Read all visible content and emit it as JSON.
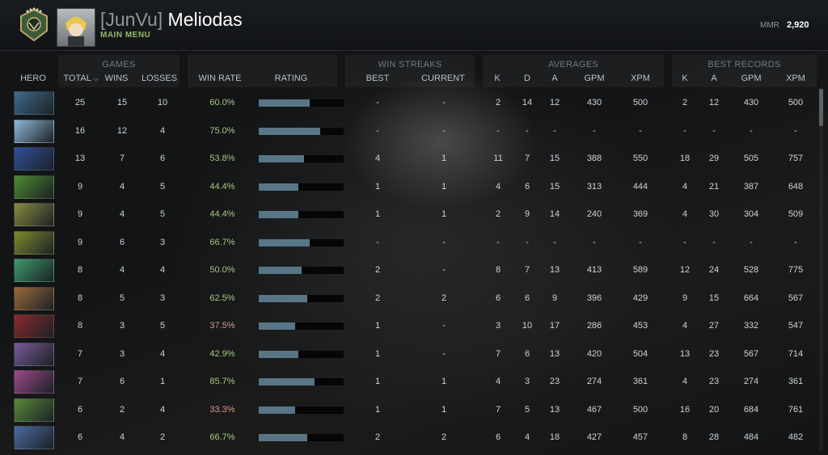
{
  "header": {
    "player_tag": "[JunVu]",
    "player_name": "Meliodas",
    "main_menu": "MAIN MENU",
    "mmr_label": "MMR",
    "mmr_value": "2,920"
  },
  "groups": {
    "games": "GAMES",
    "win_streaks": "WIN STREAKS",
    "averages": "AVERAGES",
    "best_records": "BEST RECORDS"
  },
  "columns": {
    "hero": "HERO",
    "total": "TOTAL",
    "wins": "WINS",
    "losses": "LOSSES",
    "win_rate": "WIN RATE",
    "rating": "RATING",
    "streak_best": "BEST",
    "streak_current": "CURRENT",
    "avg_k": "K",
    "avg_d": "D",
    "avg_a": "A",
    "avg_gpm": "GPM",
    "avg_xpm": "XPM",
    "best_k": "K",
    "best_a": "A",
    "best_gpm": "GPM",
    "best_xpm": "XPM"
  },
  "colors": {
    "win_rate_good": "#a5c97f",
    "win_rate_bad": "#d79a94",
    "rating_bar": "#587686",
    "accent_green": "#98b96a"
  },
  "rows": [
    {
      "hero_icon": "hero-portrait-1",
      "hero_color": "#3f6a8c",
      "total": "25",
      "wins": "15",
      "losses": "10",
      "win_rate": "60.0%",
      "rating": 0.6,
      "streak_best": "-",
      "streak_current": "-",
      "k": "2",
      "d": "14",
      "a": "12",
      "gpm": "430",
      "xpm": "500",
      "best_k": "2",
      "best_a": "12",
      "best_gpm": "430",
      "best_xpm": "500"
    },
    {
      "hero_icon": "hero-portrait-2",
      "hero_color": "#8fb8d8",
      "total": "16",
      "wins": "12",
      "losses": "4",
      "win_rate": "75.0%",
      "rating": 0.72,
      "streak_best": "-",
      "streak_current": "-",
      "k": "-",
      "d": "-",
      "a": "-",
      "gpm": "-",
      "xpm": "-",
      "best_k": "-",
      "best_a": "-",
      "best_gpm": "-",
      "best_xpm": "-"
    },
    {
      "hero_icon": "hero-portrait-3",
      "hero_color": "#2f4f9a",
      "total": "13",
      "wins": "7",
      "losses": "6",
      "win_rate": "53.8%",
      "rating": 0.53,
      "streak_best": "4",
      "streak_current": "1",
      "k": "11",
      "d": "7",
      "a": "15",
      "gpm": "388",
      "xpm": "550",
      "best_k": "18",
      "best_a": "29",
      "best_gpm": "505",
      "best_xpm": "757"
    },
    {
      "hero_icon": "hero-portrait-4",
      "hero_color": "#4d8a2e",
      "total": "9",
      "wins": "4",
      "losses": "5",
      "win_rate": "44.4%",
      "rating": 0.47,
      "streak_best": "1",
      "streak_current": "1",
      "k": "4",
      "d": "6",
      "a": "15",
      "gpm": "313",
      "xpm": "444",
      "best_k": "4",
      "best_a": "21",
      "best_gpm": "387",
      "best_xpm": "648"
    },
    {
      "hero_icon": "hero-portrait-5",
      "hero_color": "#8a8a3e",
      "total": "9",
      "wins": "4",
      "losses": "5",
      "win_rate": "44.4%",
      "rating": 0.47,
      "streak_best": "1",
      "streak_current": "1",
      "k": "2",
      "d": "9",
      "a": "14",
      "gpm": "240",
      "xpm": "369",
      "best_k": "4",
      "best_a": "30",
      "best_gpm": "304",
      "best_xpm": "509"
    },
    {
      "hero_icon": "hero-portrait-6",
      "hero_color": "#7e8a2c",
      "total": "9",
      "wins": "6",
      "losses": "3",
      "win_rate": "66.7%",
      "rating": 0.6,
      "streak_best": "-",
      "streak_current": "-",
      "k": "-",
      "d": "-",
      "a": "-",
      "gpm": "-",
      "xpm": "-",
      "best_k": "-",
      "best_a": "-",
      "best_gpm": "-",
      "best_xpm": "-"
    },
    {
      "hero_icon": "hero-portrait-7",
      "hero_color": "#3e9a6a",
      "total": "8",
      "wins": "4",
      "losses": "4",
      "win_rate": "50.0%",
      "rating": 0.5,
      "streak_best": "2",
      "streak_current": "-",
      "k": "8",
      "d": "7",
      "a": "13",
      "gpm": "413",
      "xpm": "589",
      "best_k": "12",
      "best_a": "24",
      "best_gpm": "528",
      "best_xpm": "775"
    },
    {
      "hero_icon": "hero-portrait-8",
      "hero_color": "#9a6a3a",
      "total": "8",
      "wins": "5",
      "losses": "3",
      "win_rate": "62.5%",
      "rating": 0.57,
      "streak_best": "2",
      "streak_current": "2",
      "k": "6",
      "d": "6",
      "a": "9",
      "gpm": "396",
      "xpm": "429",
      "best_k": "9",
      "best_a": "15",
      "best_gpm": "664",
      "best_xpm": "567"
    },
    {
      "hero_icon": "hero-portrait-9",
      "hero_color": "#8a2a2a",
      "total": "8",
      "wins": "3",
      "losses": "5",
      "win_rate": "37.5%",
      "rating": 0.43,
      "streak_best": "1",
      "streak_current": "-",
      "k": "3",
      "d": "10",
      "a": "17",
      "gpm": "286",
      "xpm": "453",
      "best_k": "4",
      "best_a": "27",
      "best_gpm": "332",
      "best_xpm": "547"
    },
    {
      "hero_icon": "hero-portrait-10",
      "hero_color": "#7a5a9a",
      "total": "7",
      "wins": "3",
      "losses": "4",
      "win_rate": "42.9%",
      "rating": 0.47,
      "streak_best": "1",
      "streak_current": "-",
      "k": "7",
      "d": "6",
      "a": "13",
      "gpm": "420",
      "xpm": "504",
      "best_k": "13",
      "best_a": "23",
      "best_gpm": "567",
      "best_xpm": "714"
    },
    {
      "hero_icon": "hero-portrait-11",
      "hero_color": "#9a4a8a",
      "total": "7",
      "wins": "6",
      "losses": "1",
      "win_rate": "85.7%",
      "rating": 0.66,
      "streak_best": "1",
      "streak_current": "1",
      "k": "4",
      "d": "3",
      "a": "23",
      "gpm": "274",
      "xpm": "361",
      "best_k": "4",
      "best_a": "23",
      "best_gpm": "274",
      "best_xpm": "361"
    },
    {
      "hero_icon": "hero-portrait-12",
      "hero_color": "#5a8a3a",
      "total": "6",
      "wins": "2",
      "losses": "4",
      "win_rate": "33.3%",
      "rating": 0.43,
      "streak_best": "1",
      "streak_current": "1",
      "k": "7",
      "d": "5",
      "a": "13",
      "gpm": "467",
      "xpm": "500",
      "best_k": "16",
      "best_a": "20",
      "best_gpm": "684",
      "best_xpm": "761"
    },
    {
      "hero_icon": "hero-portrait-13",
      "hero_color": "#4a6aa0",
      "total": "6",
      "wins": "4",
      "losses": "2",
      "win_rate": "66.7%",
      "rating": 0.57,
      "streak_best": "2",
      "streak_current": "2",
      "k": "6",
      "d": "4",
      "a": "18",
      "gpm": "427",
      "xpm": "457",
      "best_k": "8",
      "best_a": "28",
      "best_gpm": "484",
      "best_xpm": "482"
    }
  ]
}
